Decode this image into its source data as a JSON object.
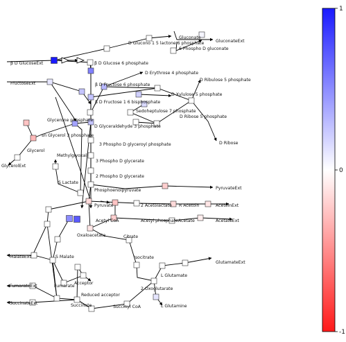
{
  "colorbar": {
    "ticks": [
      "1",
      "0",
      "-1"
    ],
    "color_top": "#1a1aff",
    "color_mid": "#ffffff",
    "color_bottom": "#ff1a1a"
  },
  "metabolites": [
    {
      "id": "gluconate_ext",
      "label": "GluconateExt"
    },
    {
      "id": "gluconate",
      "label": "Gluconate"
    },
    {
      "id": "gluconolactone6p",
      "label": "D Glucono 1 5 lactone 6 phosphate"
    },
    {
      "id": "gluconate6p",
      "label": "6 Phospho D gluconate"
    },
    {
      "id": "glucose_ext",
      "label": "β D GlucoseExt"
    },
    {
      "id": "g6p",
      "label": "β D Glucose 6 phosphate"
    },
    {
      "id": "e4p",
      "label": "D Erythrose 4 phosphate"
    },
    {
      "id": "ru5p",
      "label": "D Ribulose 5 phosphate"
    },
    {
      "id": "fructose_ext",
      "label": "FructoseExt"
    },
    {
      "id": "f6p",
      "label": "β D Fructose 6 phosphate"
    },
    {
      "id": "xu5p",
      "label": "D Xylulose 5 phosphate"
    },
    {
      "id": "fbp",
      "label": "β D Fructose 1 6 bisphosphate"
    },
    {
      "id": "s7p",
      "label": "Sedoheptulose 7 phosphate"
    },
    {
      "id": "r5p",
      "label": "D Ribose 5 phosphate"
    },
    {
      "id": "dhap",
      "label": "Glycerone phosphate"
    },
    {
      "id": "gap",
      "label": "D Glyceraldehyde 3 phosphate"
    },
    {
      "id": "glycerol3p",
      "label": "sn Glycerol 3 phosphate"
    },
    {
      "id": "ribose",
      "label": "D Ribose"
    },
    {
      "id": "bpg",
      "label": "3 Phospho D glyceroyl phosphate"
    },
    {
      "id": "glycerol",
      "label": "Glycerol"
    },
    {
      "id": "methylglyoxal",
      "label": "Methylglyoxal"
    },
    {
      "id": "glycerol_ext",
      "label": "GlycerolExt"
    },
    {
      "id": "pg3",
      "label": "3 Phospho D glycerate"
    },
    {
      "id": "pg2",
      "label": "2 Phospho D glycerate"
    },
    {
      "id": "lactate",
      "label": "S Lactate"
    },
    {
      "id": "pep",
      "label": "Phosphoenolpyruvate"
    },
    {
      "id": "pyruvate_ext",
      "label": "PyruvateExt"
    },
    {
      "id": "pyruvate",
      "label": "Pyruvate"
    },
    {
      "id": "acetolactate",
      "label": "2 Acetolactate"
    },
    {
      "id": "acetoin",
      "label": "R Acetoin"
    },
    {
      "id": "acetoin_ext",
      "label": "AcetoinExt"
    },
    {
      "id": "acetylcoa",
      "label": "Acetyl CoA"
    },
    {
      "id": "acetylp",
      "label": "Acetyl phosphate"
    },
    {
      "id": "acetate",
      "label": "Acetate"
    },
    {
      "id": "acetate_ext",
      "label": "AcetateExt"
    },
    {
      "id": "oxaloacetate",
      "label": "Oxaloacetate"
    },
    {
      "id": "citrate",
      "label": "Citrate"
    },
    {
      "id": "malate_ext",
      "label": "MalateExt"
    },
    {
      "id": "malate",
      "label": "S Malate"
    },
    {
      "id": "isocitrate",
      "label": "Isocitrate"
    },
    {
      "id": "glutamate_ext",
      "label": "GlutamateExt"
    },
    {
      "id": "glutamate",
      "label": "L Glutamate"
    },
    {
      "id": "acceptor",
      "label": "Acceptor"
    },
    {
      "id": "fumarate_ext",
      "label": "FumarateExt"
    },
    {
      "id": "fumarate",
      "label": "Fumarate"
    },
    {
      "id": "oxoglutarate",
      "label": "2 Oxoglutarate"
    },
    {
      "id": "reduced_acceptor",
      "label": "Reduced acceptor"
    },
    {
      "id": "succinate_ext",
      "label": "SuccinateExt"
    },
    {
      "id": "succinate",
      "label": "Succinate"
    },
    {
      "id": "succinylcoa",
      "label": "Succinyl CoA"
    },
    {
      "id": "glutamine",
      "label": "L Glutamine"
    }
  ],
  "reactions": [
    {
      "id": "r01",
      "value": 0.05,
      "color": "#f5f5ff"
    },
    {
      "id": "r02",
      "value": 0.0,
      "color": "#ffffff"
    },
    {
      "id": "r03",
      "value": 0.0,
      "color": "#ffffff"
    },
    {
      "id": "r04",
      "value": 1.0,
      "color": "#1a1aff"
    },
    {
      "id": "r05",
      "value": 0.0,
      "color": "#ffffff"
    },
    {
      "id": "r06",
      "value": 0.0,
      "color": "#ffffff"
    },
    {
      "id": "r07",
      "value": 0.15,
      "color": "#e6e6ff"
    },
    {
      "id": "r08",
      "value": 0.6,
      "color": "#8080ff"
    },
    {
      "id": "r09",
      "value": 0.3,
      "color": "#c4c4ff"
    },
    {
      "id": "r10",
      "value": 0.35,
      "color": "#b8b8ff"
    },
    {
      "id": "r11",
      "value": 0.0,
      "color": "#ffffff"
    },
    {
      "id": "r12",
      "value": 0.25,
      "color": "#cfcfff"
    },
    {
      "id": "r13",
      "value": 0.3,
      "color": "#c4c4ff"
    },
    {
      "id": "r14",
      "value": 0.0,
      "color": "#ffffff"
    },
    {
      "id": "r15",
      "value": 0.2,
      "color": "#dadaff"
    },
    {
      "id": "r16",
      "value": 0.0,
      "color": "#ffffff"
    },
    {
      "id": "r17",
      "value": 0.45,
      "color": "#a3a3ff"
    },
    {
      "id": "r18",
      "value": 0.3,
      "color": "#c4c4ff"
    },
    {
      "id": "r19",
      "value": 0.0,
      "color": "#ffffff"
    },
    {
      "id": "r20",
      "value": 0.0,
      "color": "#ffffff"
    },
    {
      "id": "r21",
      "value": 0.0,
      "color": "#ffffff"
    },
    {
      "id": "r22",
      "value": -0.3,
      "color": "#ffc4c4"
    },
    {
      "id": "r23",
      "value": -0.35,
      "color": "#ffb8b8"
    },
    {
      "id": "r24",
      "value": 0.0,
      "color": "#ffffff"
    },
    {
      "id": "r25",
      "value": 0.0,
      "color": "#ffffff"
    },
    {
      "id": "r26",
      "value": 0.0,
      "color": "#ffffff"
    },
    {
      "id": "r27",
      "value": 0.0,
      "color": "#ffffff"
    },
    {
      "id": "r28",
      "value": 0.0,
      "color": "#ffffff"
    },
    {
      "id": "r29",
      "value": 0.0,
      "color": "#ffffff"
    },
    {
      "id": "r30",
      "value": 0.0,
      "color": "#ffffff"
    },
    {
      "id": "r31",
      "value": -0.2,
      "color": "#ffdada"
    },
    {
      "id": "r32",
      "value": 0.0,
      "color": "#ffffff"
    },
    {
      "id": "r33",
      "value": -0.25,
      "color": "#ffcfcf"
    },
    {
      "id": "r34",
      "value": -0.2,
      "color": "#ffdada"
    },
    {
      "id": "r35",
      "value": -0.15,
      "color": "#ffe6e6"
    },
    {
      "id": "r36",
      "value": 0.0,
      "color": "#ffffff"
    },
    {
      "id": "r37",
      "value": -0.3,
      "color": "#ffc4c4"
    },
    {
      "id": "r38",
      "value": -0.15,
      "color": "#ffe6e6"
    },
    {
      "id": "r39",
      "value": -0.1,
      "color": "#ffeeee"
    },
    {
      "id": "r40",
      "value": 0.0,
      "color": "#ffffff"
    },
    {
      "id": "r41",
      "value": 0.0,
      "color": "#ffffff"
    },
    {
      "id": "r42",
      "value": 0.55,
      "color": "#8c8cff"
    },
    {
      "id": "r43",
      "value": 0.75,
      "color": "#5a5aff"
    },
    {
      "id": "r44",
      "value": -0.25,
      "color": "#ffcfcf"
    },
    {
      "id": "r45",
      "value": 0.0,
      "color": "#ffffff"
    },
    {
      "id": "r46",
      "value": 0.0,
      "color": "#ffffff"
    },
    {
      "id": "r47",
      "value": 0.0,
      "color": "#ffffff"
    },
    {
      "id": "r48",
      "value": 0.0,
      "color": "#ffffff"
    },
    {
      "id": "r49",
      "value": 0.0,
      "color": "#ffffff"
    },
    {
      "id": "r50",
      "value": 0.0,
      "color": "#ffffff"
    },
    {
      "id": "r51",
      "value": 0.0,
      "color": "#ffffff"
    },
    {
      "id": "r52",
      "value": 0.0,
      "color": "#ffffff"
    },
    {
      "id": "r53",
      "value": 0.0,
      "color": "#ffffff"
    },
    {
      "id": "r54",
      "value": 0.0,
      "color": "#ffffff"
    },
    {
      "id": "r55",
      "value": 0.0,
      "color": "#ffffff"
    },
    {
      "id": "r56",
      "value": 0.0,
      "color": "#ffffff"
    },
    {
      "id": "r57",
      "value": 0.0,
      "color": "#ffffff"
    },
    {
      "id": "r58",
      "value": 0.0,
      "color": "#ffffff"
    },
    {
      "id": "r59",
      "value": 0.15,
      "color": "#e6e6ff"
    },
    {
      "id": "r60",
      "value": 0.0,
      "color": "#ffffff"
    },
    {
      "id": "r61",
      "value": 0.0,
      "color": "#ffffff"
    },
    {
      "id": "r62",
      "value": 0.0,
      "color": "#ffffff"
    }
  ]
}
